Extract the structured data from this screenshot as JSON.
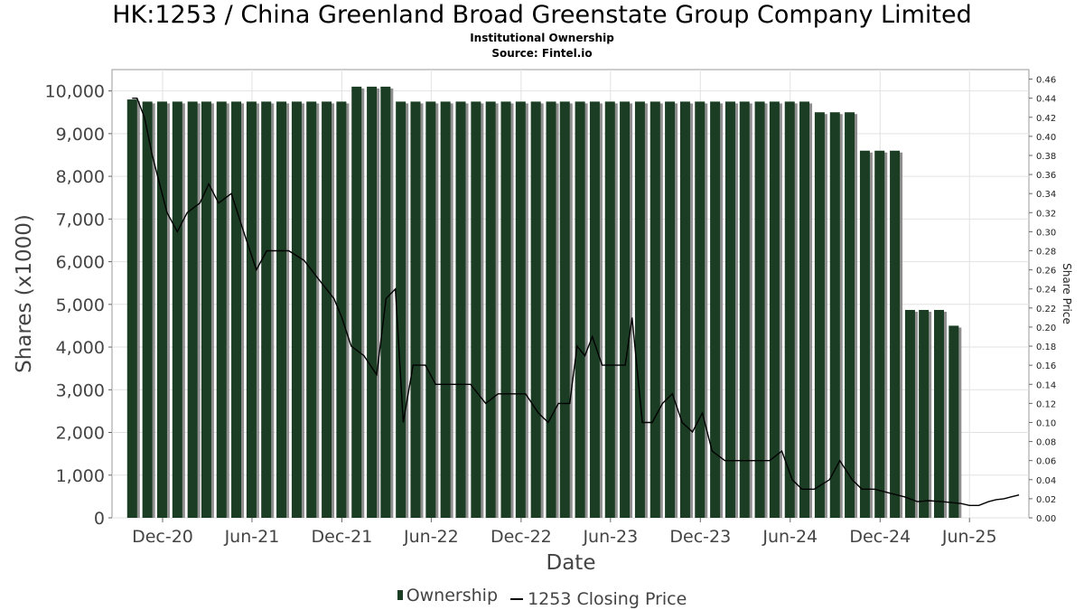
{
  "header": {
    "title": "HK:1253 / China Greenland Broad Greenstate Group Company Limited",
    "subtitle": "Institutional Ownership",
    "source": "Source: Fintel.io"
  },
  "legend": {
    "ownership_label": "Ownership",
    "price_label": "1253 Closing Price"
  },
  "colors": {
    "bar": "#1a3d24",
    "bar_shadow": "#8f8f8f",
    "line": "#000000",
    "grid": "#e2e2e2"
  },
  "chart_data": {
    "type": "bar",
    "title": "HK:1253 / China Greenland Broad Greenstate Group Company Limited",
    "subtitle": "Institutional Ownership",
    "xlabel": "Date",
    "ylabel": "Shares (x1000)",
    "y2label": "Share Price",
    "ylim": [
      0,
      10500
    ],
    "y2lim": [
      0,
      0.47
    ],
    "yticks": [
      0,
      1000,
      2000,
      3000,
      4000,
      5000,
      6000,
      7000,
      8000,
      9000,
      10000
    ],
    "ytick_labels": [
      "0",
      "1,000",
      "2,000",
      "3,000",
      "4,000",
      "5,000",
      "6,000",
      "7,000",
      "8,000",
      "9,000",
      "10,000"
    ],
    "y2ticks": [
      0,
      0.02,
      0.04,
      0.06,
      0.08,
      0.1,
      0.12,
      0.14,
      0.16,
      0.18,
      0.2,
      0.22,
      0.24,
      0.26,
      0.28,
      0.3,
      0.32,
      0.34,
      0.36,
      0.38,
      0.4,
      0.42,
      0.44,
      0.46
    ],
    "y2tick_labels": [
      "0.00",
      "0.02",
      "0.04",
      "0.06",
      "0.08",
      "0.10",
      "0.12",
      "0.14",
      "0.16",
      "0.18",
      "0.20",
      "0.22",
      "0.24",
      "0.26",
      "0.28",
      "0.30",
      "0.32",
      "0.34",
      "0.36",
      "0.38",
      "0.40",
      "0.42",
      "0.44",
      "0.46"
    ],
    "xlim": [
      "2020-08-20",
      "2025-09-30"
    ],
    "xticks": [
      "2020-12-01",
      "2021-06-01",
      "2021-12-01",
      "2022-06-01",
      "2022-12-01",
      "2023-06-01",
      "2023-12-01",
      "2024-06-01",
      "2024-12-01",
      "2025-06-01"
    ],
    "xtick_labels": [
      "Dec-20",
      "Jun-21",
      "Dec-21",
      "Jun-22",
      "Dec-22",
      "Jun-23",
      "Dec-23",
      "Jun-24",
      "Dec-24",
      "Jun-25"
    ],
    "grid": true,
    "legend_position": "bottom",
    "series": [
      {
        "name": "Ownership",
        "type": "bar",
        "axis": "left",
        "dates": [
          "2020-09-30",
          "2020-10-31",
          "2020-11-30",
          "2020-12-31",
          "2021-01-31",
          "2021-02-28",
          "2021-03-31",
          "2021-04-30",
          "2021-05-31",
          "2021-06-30",
          "2021-07-31",
          "2021-08-31",
          "2021-09-30",
          "2021-10-31",
          "2021-11-30",
          "2021-12-31",
          "2022-01-31",
          "2022-02-28",
          "2022-03-31",
          "2022-04-30",
          "2022-05-31",
          "2022-06-30",
          "2022-07-31",
          "2022-08-31",
          "2022-09-30",
          "2022-10-31",
          "2022-11-30",
          "2022-12-31",
          "2023-01-31",
          "2023-02-28",
          "2023-03-31",
          "2023-04-30",
          "2023-05-31",
          "2023-06-30",
          "2023-07-31",
          "2023-08-31",
          "2023-09-30",
          "2023-10-31",
          "2023-11-30",
          "2023-12-31",
          "2024-01-31",
          "2024-02-29",
          "2024-03-31",
          "2024-04-30",
          "2024-05-31",
          "2024-06-30",
          "2024-07-31",
          "2024-08-31",
          "2024-09-30",
          "2024-10-31",
          "2024-11-30",
          "2024-12-31",
          "2025-01-31",
          "2025-02-28",
          "2025-03-31",
          "2025-04-30"
        ],
        "values": [
          9800,
          9750,
          9750,
          9750,
          9750,
          9750,
          9750,
          9750,
          9750,
          9750,
          9750,
          9750,
          9750,
          9750,
          9750,
          10100,
          10100,
          10100,
          9750,
          9750,
          9750,
          9750,
          9750,
          9750,
          9750,
          9750,
          9750,
          9750,
          9750,
          9750,
          9750,
          9750,
          9750,
          9750,
          9750,
          9750,
          9750,
          9750,
          9750,
          9750,
          9750,
          9750,
          9750,
          9750,
          9750,
          9750,
          9500,
          9500,
          9500,
          8600,
          8600,
          8600,
          4870,
          4870,
          4870,
          4500
        ]
      },
      {
        "name": "1253 Closing Price",
        "type": "line",
        "axis": "right",
        "points": [
          [
            "2020-09-30",
            0.44
          ],
          [
            "2020-10-10",
            0.44
          ],
          [
            "2020-10-25",
            0.42
          ],
          [
            "2020-11-10",
            0.38
          ],
          [
            "2020-11-25",
            0.35
          ],
          [
            "2020-12-10",
            0.32
          ],
          [
            "2020-12-31",
            0.3
          ],
          [
            "2021-01-20",
            0.32
          ],
          [
            "2021-02-15",
            0.33
          ],
          [
            "2021-03-05",
            0.35
          ],
          [
            "2021-03-25",
            0.33
          ],
          [
            "2021-04-20",
            0.34
          ],
          [
            "2021-05-15",
            0.3
          ],
          [
            "2021-06-10",
            0.26
          ],
          [
            "2021-07-01",
            0.28
          ],
          [
            "2021-07-20",
            0.28
          ],
          [
            "2021-08-15",
            0.28
          ],
          [
            "2021-09-15",
            0.27
          ],
          [
            "2021-10-15",
            0.25
          ],
          [
            "2021-11-15",
            0.23
          ],
          [
            "2021-12-01",
            0.21
          ],
          [
            "2021-12-20",
            0.18
          ],
          [
            "2022-01-15",
            0.17
          ],
          [
            "2022-02-10",
            0.15
          ],
          [
            "2022-03-01",
            0.23
          ],
          [
            "2022-03-20",
            0.24
          ],
          [
            "2022-04-05",
            0.1
          ],
          [
            "2022-04-25",
            0.16
          ],
          [
            "2022-05-20",
            0.16
          ],
          [
            "2022-06-10",
            0.14
          ],
          [
            "2022-07-15",
            0.14
          ],
          [
            "2022-08-20",
            0.14
          ],
          [
            "2022-09-20",
            0.12
          ],
          [
            "2022-10-15",
            0.13
          ],
          [
            "2022-11-15",
            0.13
          ],
          [
            "2022-12-10",
            0.13
          ],
          [
            "2023-01-05",
            0.11
          ],
          [
            "2023-01-25",
            0.1
          ],
          [
            "2023-02-15",
            0.12
          ],
          [
            "2023-03-10",
            0.12
          ],
          [
            "2023-03-25",
            0.18
          ],
          [
            "2023-04-10",
            0.17
          ],
          [
            "2023-04-25",
            0.19
          ],
          [
            "2023-05-15",
            0.16
          ],
          [
            "2023-06-10",
            0.16
          ],
          [
            "2023-07-01",
            0.16
          ],
          [
            "2023-07-15",
            0.21
          ],
          [
            "2023-08-05",
            0.1
          ],
          [
            "2023-08-25",
            0.1
          ],
          [
            "2023-09-15",
            0.12
          ],
          [
            "2023-10-05",
            0.13
          ],
          [
            "2023-10-25",
            0.1
          ],
          [
            "2023-11-15",
            0.09
          ],
          [
            "2023-12-05",
            0.11
          ],
          [
            "2023-12-25",
            0.07
          ],
          [
            "2024-01-20",
            0.06
          ],
          [
            "2024-02-20",
            0.06
          ],
          [
            "2024-03-20",
            0.06
          ],
          [
            "2024-04-20",
            0.06
          ],
          [
            "2024-05-15",
            0.07
          ],
          [
            "2024-06-05",
            0.04
          ],
          [
            "2024-06-25",
            0.03
          ],
          [
            "2024-07-20",
            0.03
          ],
          [
            "2024-08-20",
            0.04
          ],
          [
            "2024-09-10",
            0.06
          ],
          [
            "2024-10-05",
            0.04
          ],
          [
            "2024-10-25",
            0.03
          ],
          [
            "2024-11-20",
            0.03
          ],
          [
            "2024-12-20",
            0.026
          ],
          [
            "2025-01-20",
            0.022
          ],
          [
            "2025-02-15",
            0.017
          ],
          [
            "2025-03-10",
            0.018
          ],
          [
            "2025-04-05",
            0.017
          ],
          [
            "2025-04-25",
            0.016
          ],
          [
            "2025-05-15",
            0.015
          ],
          [
            "2025-06-01",
            0.013
          ],
          [
            "2025-06-20",
            0.013
          ],
          [
            "2025-07-10",
            0.017
          ],
          [
            "2025-07-25",
            0.019
          ],
          [
            "2025-08-10",
            0.02
          ],
          [
            "2025-08-25",
            0.022
          ],
          [
            "2025-09-10",
            0.024
          ]
        ]
      }
    ]
  }
}
